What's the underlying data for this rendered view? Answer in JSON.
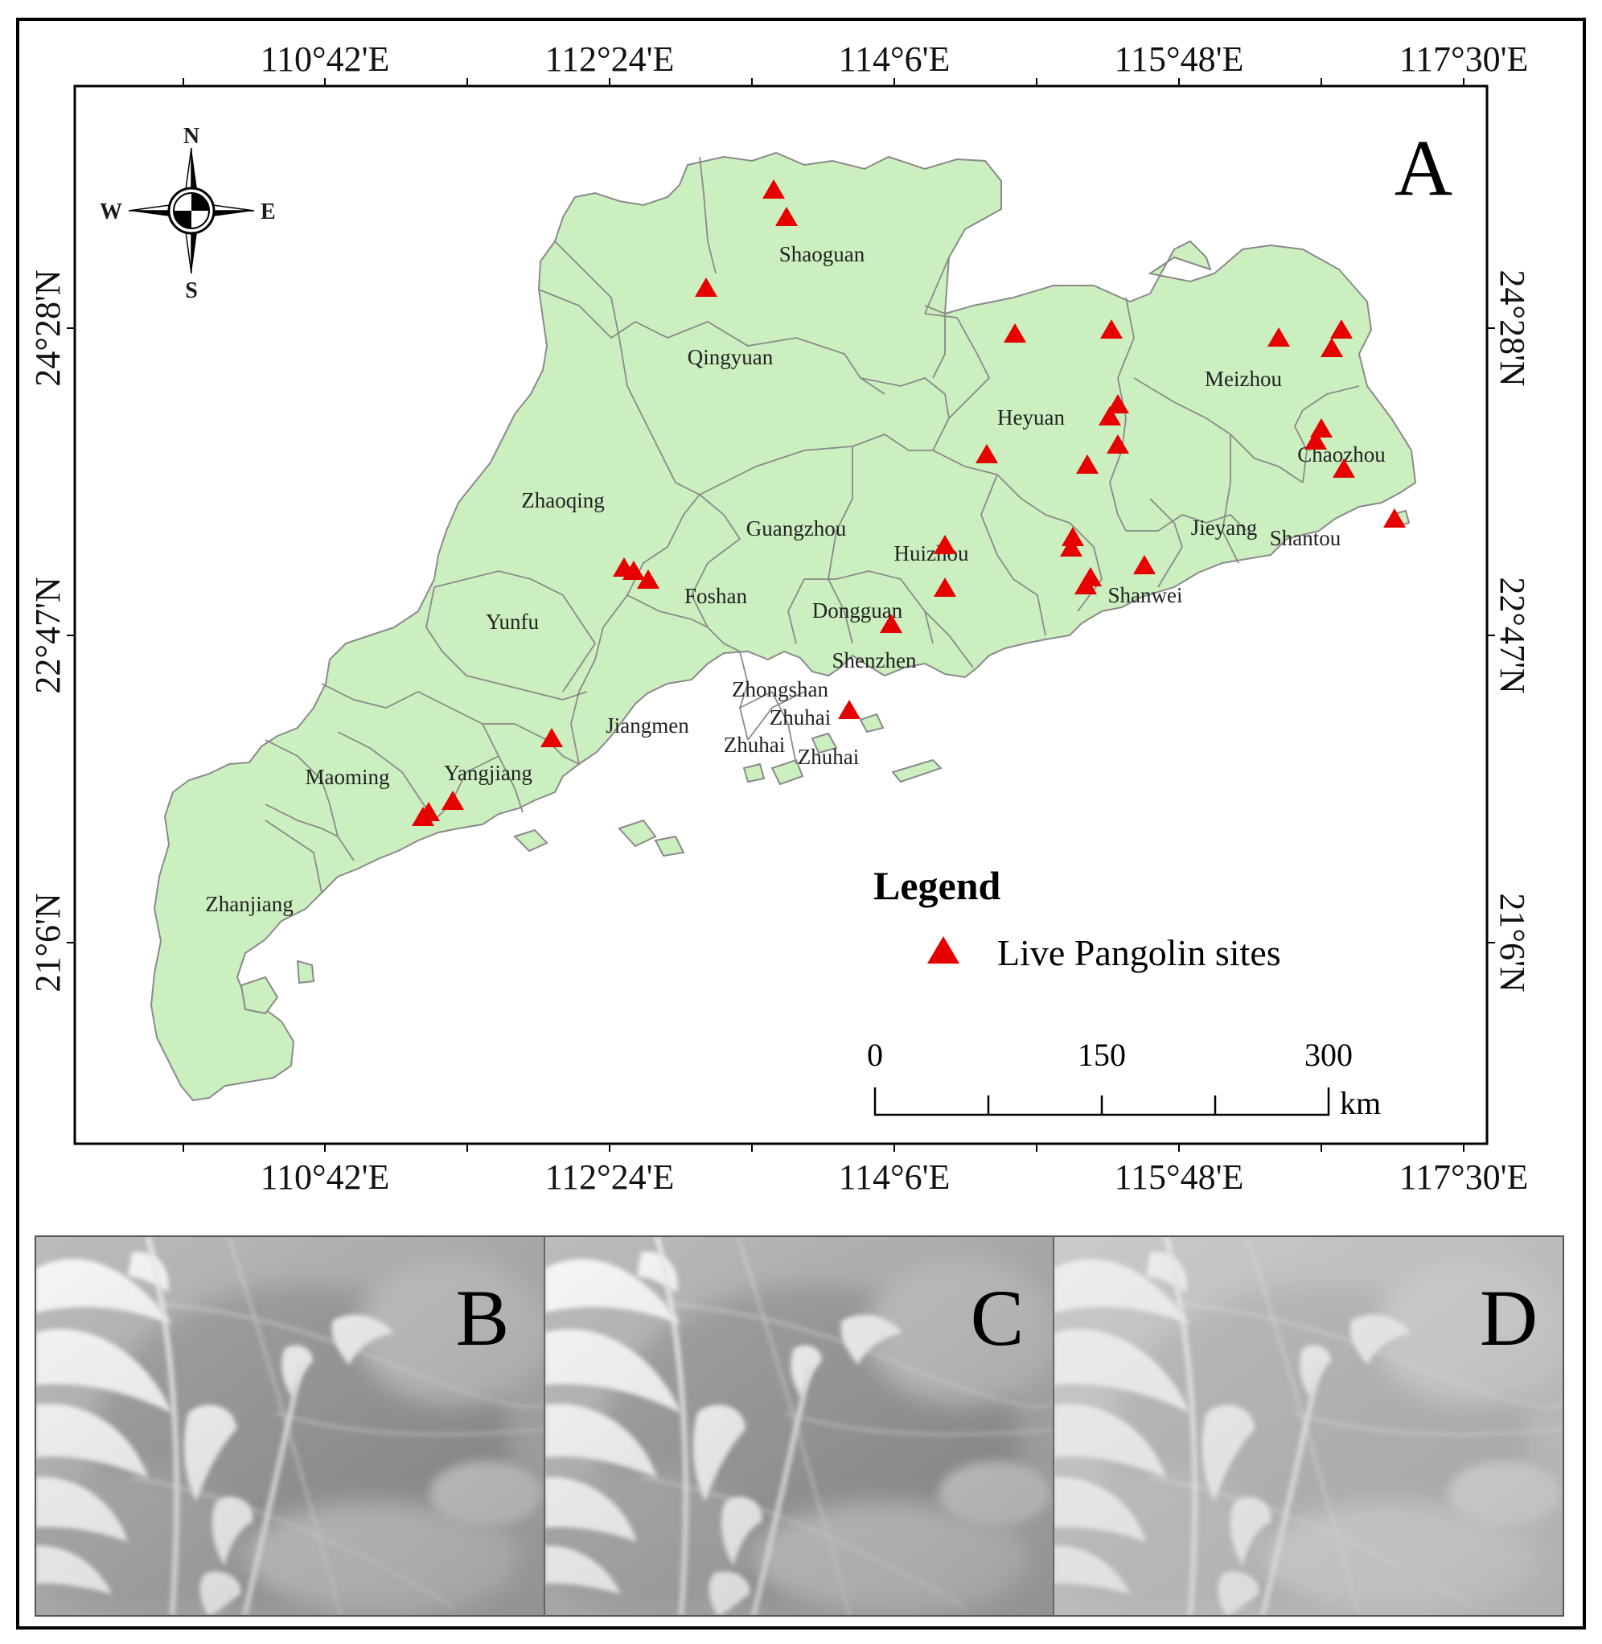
{
  "panel_a": {
    "label": "A",
    "top_longitudes": [
      "110°42'E",
      "112°24'E",
      "114°6'E",
      "115°48'E",
      "117°30'E"
    ],
    "bottom_longitudes": [
      "110°42'E",
      "112°24'E",
      "114°6'E",
      "115°48'E",
      "117°30'E"
    ],
    "left_latitudes": [
      "24°28'N",
      "22°47'N",
      "21°6'N"
    ],
    "right_latitudes": [
      "24°28'N",
      "22°47'N",
      "21°6'N"
    ],
    "compass": {
      "n": "N",
      "s": "S",
      "e": "E",
      "w": "W"
    },
    "cities": [
      "Shaoguan",
      "Qingyuan",
      "Meizhou",
      "Heyuan",
      "Chaozhou",
      "Zhaoqing",
      "Guangzhou",
      "Jieyang",
      "Shantou",
      "Huizhou",
      "Foshan",
      "Shanwei",
      "Dongguan",
      "Yunfu",
      "Shenzhen",
      "Zhongshan",
      "Zhuhai",
      "Jiangmen",
      "Zhuhai",
      "Zhuhai",
      "Maoming",
      "Yangjiang",
      "Zhanjiang"
    ],
    "legend": {
      "title": "Legend",
      "item": "Live Pangolin sites"
    },
    "scale_bar": {
      "ticks": [
        "0",
        "150",
        "300"
      ],
      "unit": "km"
    },
    "colors": {
      "land": "#ccefc0",
      "border": "#8a8a8a",
      "site_marker": "#e60000"
    },
    "marker_icon": "red-triangle-icon",
    "site_count": 33
  },
  "photos": [
    {
      "label": "B"
    },
    {
      "label": "C"
    },
    {
      "label": "D"
    }
  ]
}
